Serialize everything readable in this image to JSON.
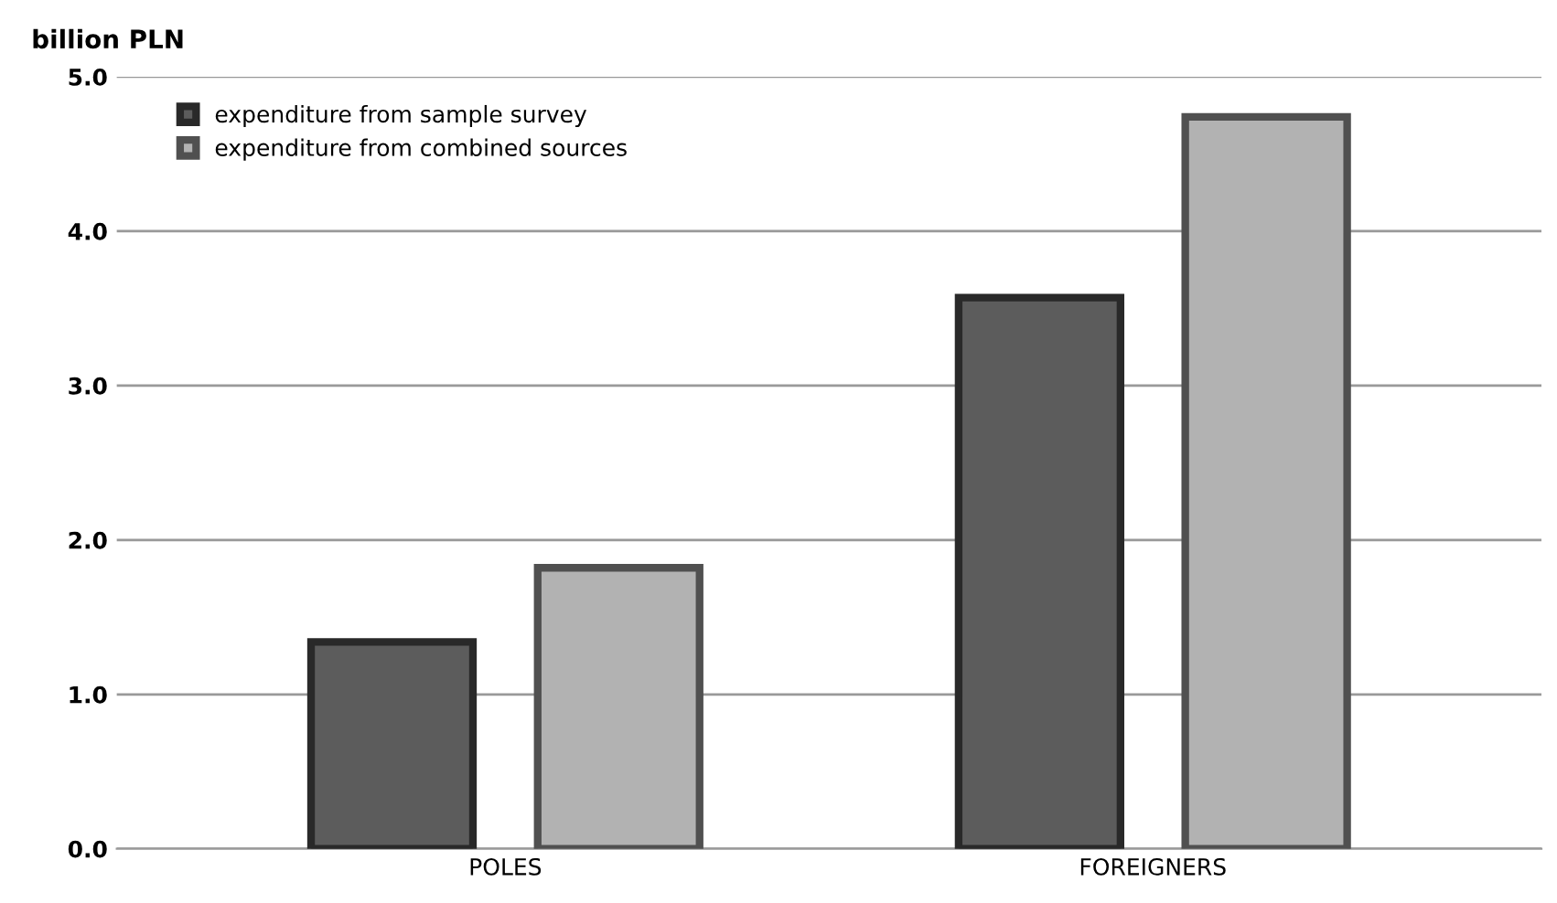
{
  "chart_data": {
    "type": "bar",
    "ylabel": "billion PLN",
    "categories": [
      "POLES",
      "FOREIGNERS"
    ],
    "series": [
      {
        "name": "expenditure from sample survey",
        "color": "#5c5c5c",
        "values": [
          1.34,
          3.57
        ]
      },
      {
        "name": "expenditure from combined sources",
        "color": "#b2b2b2",
        "values": [
          1.82,
          4.74
        ]
      }
    ],
    "ylim": [
      0,
      5
    ],
    "yticks": [
      {
        "value": 0,
        "label": "0.0"
      },
      {
        "value": 1,
        "label": "1.0"
      },
      {
        "value": 2,
        "label": "2.0"
      },
      {
        "value": 3,
        "label": "3.0"
      },
      {
        "value": 4,
        "label": "4.0"
      },
      {
        "value": 5,
        "label": "5.0"
      }
    ],
    "grid": "y",
    "legend": "top left"
  }
}
